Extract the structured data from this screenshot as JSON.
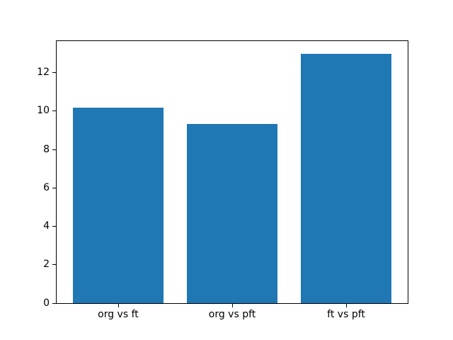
{
  "window": {
    "background": "#ffffff"
  },
  "chart_data": {
    "type": "bar",
    "title": "",
    "xlabel": "",
    "ylabel": "",
    "categories": [
      "org vs ft",
      "org vs pft",
      "ft vs pft"
    ],
    "values": [
      10.2,
      9.35,
      13.0
    ],
    "yticks": [
      0,
      2,
      4,
      6,
      8,
      10,
      12
    ],
    "ytick_labels": [
      "0",
      "2",
      "4",
      "6",
      "8",
      "10",
      "12"
    ],
    "ylim": [
      0,
      13.65
    ],
    "xlim": [
      -0.54,
      2.54
    ],
    "bar_width": 0.8,
    "bar_color": "#1f77b4",
    "spine_color": "#000000",
    "grid": false,
    "legend": null
  }
}
